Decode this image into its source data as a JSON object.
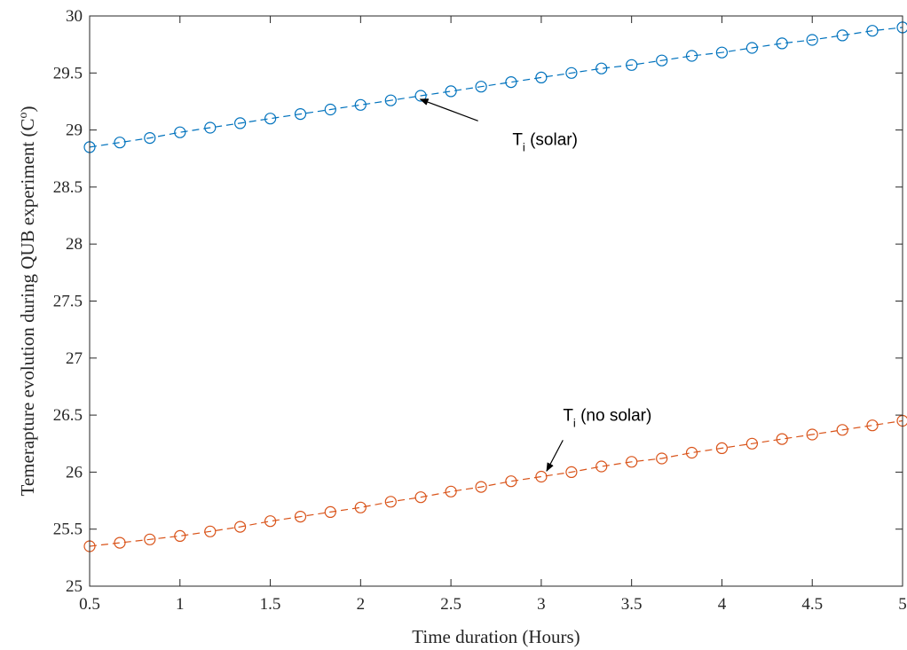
{
  "chart_data": {
    "type": "line",
    "xlabel": "Time duration (Hours)",
    "ylabel": "Temerapture evolution during QUB experiment (C",
    "ylabel_sup": "o",
    "ylabel_suffix": ")",
    "xlim": [
      0.5,
      5
    ],
    "ylim": [
      25,
      30
    ],
    "xticks": [
      "0.5",
      "1",
      "1.5",
      "2",
      "2.5",
      "3",
      "3.5",
      "4",
      "4.5",
      "5"
    ],
    "yticks": [
      "25",
      "25.5",
      "26",
      "26.5",
      "27",
      "27.5",
      "28",
      "28.5",
      "29",
      "29.5",
      "30"
    ],
    "grid": false,
    "x": [
      0.5,
      0.667,
      0.833,
      1.0,
      1.167,
      1.333,
      1.5,
      1.667,
      1.833,
      2.0,
      2.167,
      2.333,
      2.5,
      2.667,
      2.833,
      3.0,
      3.167,
      3.333,
      3.5,
      3.667,
      3.833,
      4.0,
      4.167,
      4.333,
      4.5,
      4.667,
      4.833,
      5.0
    ],
    "series": [
      {
        "color": "#0072BD",
        "marker": "circle",
        "linestyle": "dashed",
        "values": [
          28.85,
          28.89,
          28.93,
          28.98,
          29.02,
          29.06,
          29.1,
          29.14,
          29.18,
          29.22,
          29.26,
          29.3,
          29.34,
          29.38,
          29.42,
          29.46,
          29.5,
          29.54,
          29.57,
          29.61,
          29.65,
          29.68,
          29.72,
          29.76,
          29.79,
          29.83,
          29.87,
          29.9
        ]
      },
      {
        "color": "#D95319",
        "marker": "circle",
        "linestyle": "dashed",
        "values": [
          25.35,
          25.38,
          25.41,
          25.44,
          25.48,
          25.52,
          25.57,
          25.61,
          25.65,
          25.69,
          25.74,
          25.78,
          25.83,
          25.87,
          25.92,
          25.96,
          26.0,
          26.05,
          26.09,
          26.12,
          26.17,
          26.21,
          26.25,
          26.29,
          26.33,
          26.37,
          26.41,
          26.45
        ]
      }
    ],
    "annotations": [
      {
        "name": "solar",
        "text_main": "T",
        "text_sub": "i",
        "text_rest": " (solar)",
        "text_at": [
          2.84,
          28.87
        ],
        "tail": [
          2.65,
          29.08
        ],
        "head": [
          2.33,
          29.27
        ]
      },
      {
        "name": "no-solar",
        "text_main": "T",
        "text_sub": "i",
        "text_rest": " (no solar)",
        "text_at": [
          3.12,
          26.45
        ],
        "tail": [
          3.12,
          26.28
        ],
        "head": [
          3.03,
          26.01
        ]
      }
    ]
  }
}
